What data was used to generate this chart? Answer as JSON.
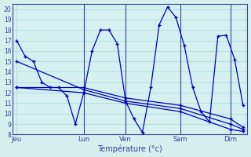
{
  "xlabel": "Température (°c)",
  "bg_color": "#d6f0f0",
  "grid_color": "#b0dede",
  "line_color": "#0000bb",
  "axis_color": "#334499",
  "ylim": [
    8,
    20.5
  ],
  "yticks": [
    8,
    9,
    10,
    11,
    12,
    13,
    14,
    15,
    16,
    17,
    18,
    19,
    20
  ],
  "xlim": [
    0,
    28
  ],
  "day_labels": [
    "Jeu",
    "Lun",
    "Ven",
    "Sam",
    "Dim"
  ],
  "day_positions": [
    0.5,
    8.5,
    13.5,
    20,
    26
  ],
  "vert_lines": [
    8.5,
    13.5,
    20,
    26
  ],
  "series1_x": [
    0.5,
    1.5,
    2.5,
    3.5,
    4.5,
    5.5,
    6.5,
    7.5,
    8.5,
    9.5,
    10.5,
    11.5,
    12.5,
    13.5,
    14.5,
    15.5,
    16.5,
    17.5,
    18.5,
    19.5,
    20.5,
    21.5,
    22.5,
    23.5,
    24.5,
    25.5,
    26.5,
    27.5
  ],
  "series1_y": [
    17.0,
    15.5,
    15.0,
    13.0,
    12.5,
    12.5,
    11.7,
    9.0,
    12.0,
    16.0,
    18.0,
    18.0,
    16.7,
    11.2,
    9.5,
    8.2,
    12.5,
    18.5,
    20.2,
    19.2,
    16.5,
    12.5,
    10.2,
    9.2,
    17.4,
    17.5,
    15.2,
    10.8
  ],
  "series2_x": [
    0.5,
    8.5,
    13.5,
    20,
    26,
    27.5
  ],
  "series2_y": [
    12.5,
    12.5,
    11.5,
    10.8,
    9.5,
    8.7
  ],
  "series3_x": [
    0.5,
    8.5,
    13.5,
    20,
    26,
    27.5
  ],
  "series3_y": [
    15.0,
    12.3,
    11.2,
    10.5,
    9.0,
    8.5
  ],
  "series4_x": [
    0.5,
    8.5,
    13.5,
    20,
    26,
    27.5
  ],
  "series4_y": [
    12.5,
    12.0,
    11.0,
    10.2,
    8.5,
    8.3
  ]
}
